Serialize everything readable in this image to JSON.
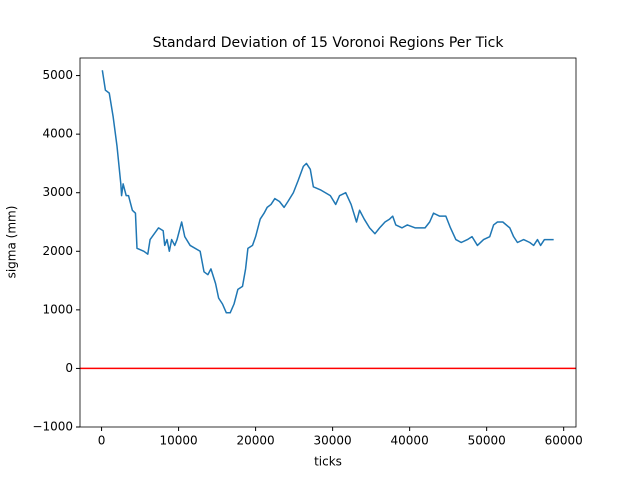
{
  "chart_data": {
    "type": "line",
    "title": "Standard Deviation of 15 Voronoi Regions Per Tick",
    "x_label": "ticks",
    "y_label": "sigma (mm)",
    "x": [
      100,
      500,
      1000,
      1500,
      2000,
      2500,
      2600,
      2800,
      3200,
      3500,
      4000,
      4400,
      4600,
      5500,
      6000,
      6300,
      7400,
      8000,
      8200,
      8500,
      8800,
      9100,
      9500,
      9800,
      10400,
      10800,
      11500,
      12800,
      13300,
      13800,
      14200,
      14800,
      15200,
      15700,
      16200,
      16700,
      17200,
      17700,
      18300,
      18700,
      19000,
      19600,
      20000,
      20600,
      21100,
      21500,
      22000,
      22500,
      23100,
      23700,
      24200,
      24900,
      25500,
      26200,
      26600,
      27100,
      27500,
      28400,
      29700,
      30400,
      30900,
      31700,
      32400,
      33100,
      33500,
      34100,
      34800,
      35500,
      36100,
      36800,
      37400,
      37800,
      38200,
      39000,
      39700,
      40700,
      42000,
      42600,
      43100,
      43900,
      44700,
      45300,
      46000,
      46700,
      47500,
      48100,
      48800,
      49600,
      50400,
      50900,
      51400,
      52100,
      53000,
      53500,
      54000,
      54800,
      55600,
      56100,
      56600,
      57000,
      57500,
      58700
    ],
    "series": [
      {
        "name": "sigma",
        "color": "#1f77b4",
        "values": [
          5090,
          4750,
          4700,
          4300,
          3800,
          3150,
          2950,
          3150,
          2950,
          2950,
          2700,
          2650,
          2050,
          2000,
          1950,
          2200,
          2400,
          2350,
          2100,
          2200,
          2000,
          2200,
          2100,
          2200,
          2500,
          2250,
          2100,
          2000,
          1650,
          1600,
          1700,
          1450,
          1200,
          1100,
          950,
          950,
          1100,
          1350,
          1400,
          1700,
          2050,
          2100,
          2250,
          2550,
          2650,
          2750,
          2800,
          2900,
          2850,
          2750,
          2850,
          3000,
          3200,
          3450,
          3500,
          3400,
          3100,
          3050,
          2950,
          2800,
          2950,
          3000,
          2800,
          2500,
          2700,
          2550,
          2400,
          2300,
          2400,
          2500,
          2550,
          2600,
          2450,
          2400,
          2450,
          2400,
          2400,
          2500,
          2650,
          2600,
          2600,
          2400,
          2200,
          2150,
          2200,
          2250,
          2100,
          2200,
          2250,
          2450,
          2500,
          2500,
          2400,
          2250,
          2150,
          2200,
          2150,
          2100,
          2200,
          2100,
          2200,
          2200
        ]
      }
    ],
    "hline": {
      "value": 0,
      "color": "#ff0000"
    },
    "xlim": [
      -2800,
      61600
    ],
    "ylim": [
      -1000,
      5300
    ],
    "xticks": [
      0,
      10000,
      20000,
      30000,
      40000,
      50000,
      60000
    ],
    "yticks": [
      {
        "value": -1000,
        "label": "−1000"
      },
      0,
      1000,
      2000,
      3000,
      4000,
      5000
    ]
  }
}
